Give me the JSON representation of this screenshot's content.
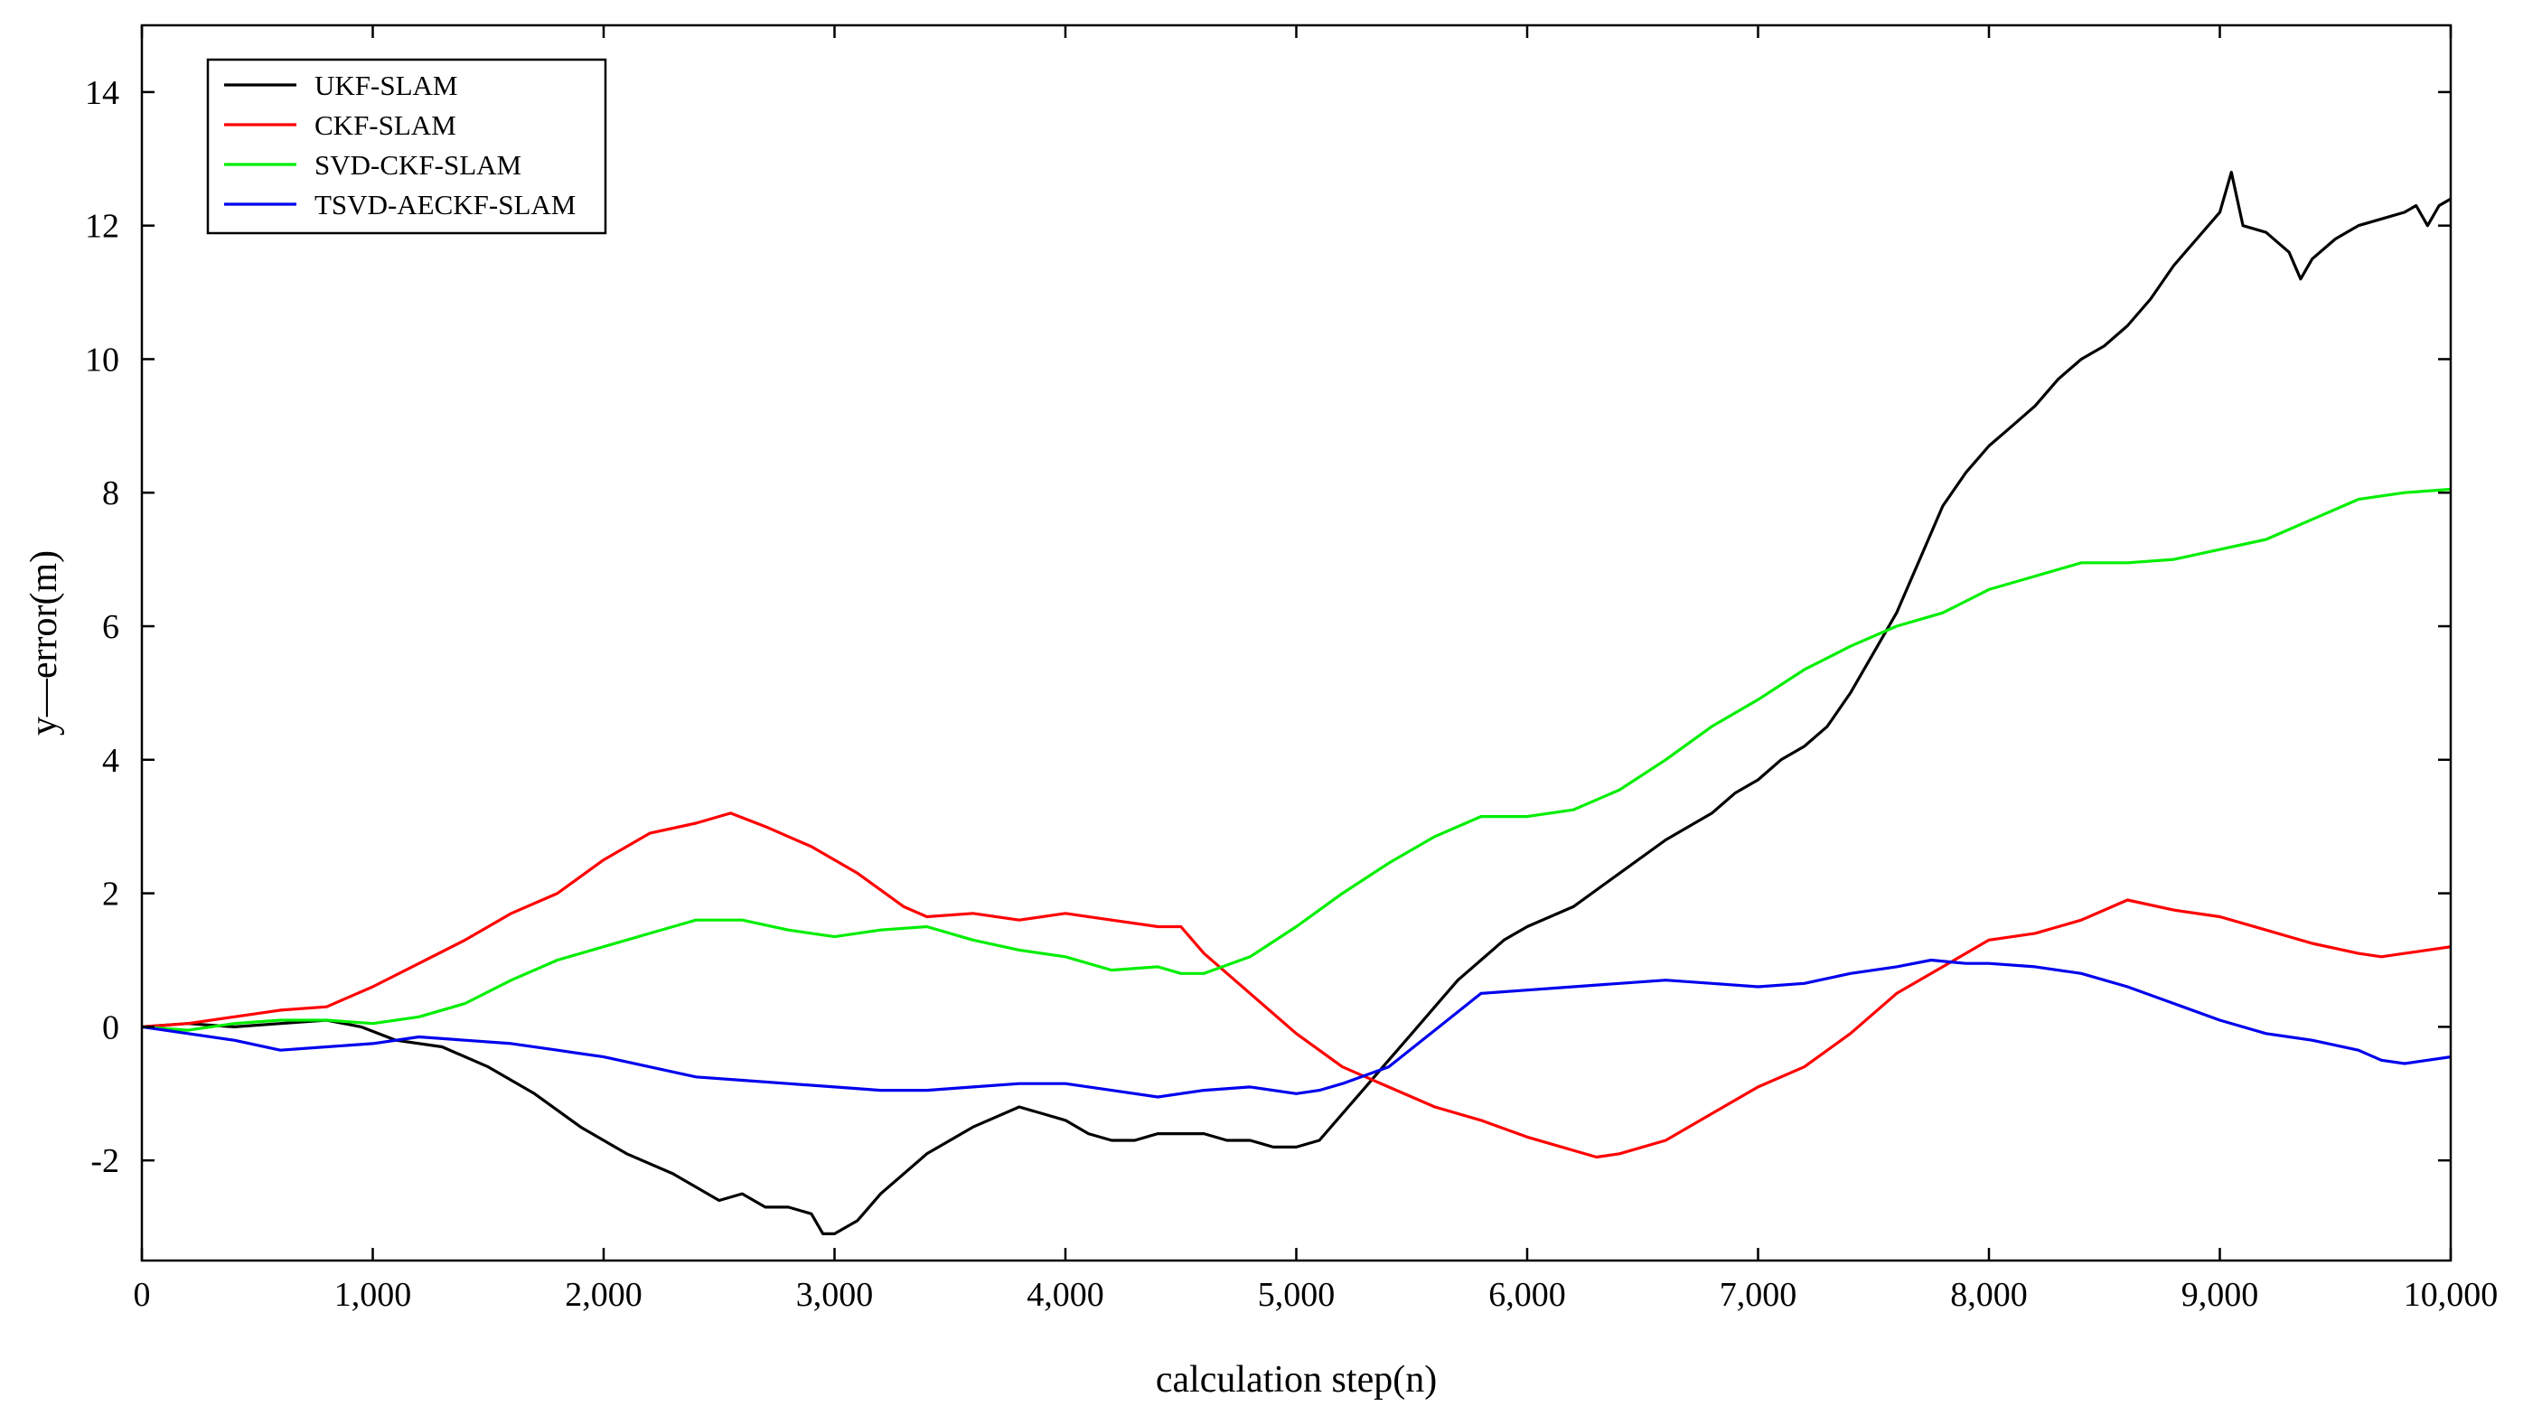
{
  "chart_data": {
    "type": "line",
    "title": "",
    "xlabel": "calculation step(n)",
    "ylabel": "y—error(m)",
    "xlim": [
      0,
      10000
    ],
    "ylim": [
      -3.5,
      15
    ],
    "xticks": [
      0,
      1000,
      2000,
      3000,
      4000,
      5000,
      6000,
      7000,
      8000,
      9000,
      10000
    ],
    "xtick_labels": [
      "0",
      "1,000",
      "2,000",
      "3,000",
      "4,000",
      "5,000",
      "6,000",
      "7,000",
      "8,000",
      "9,000",
      "10,000"
    ],
    "yticks": [
      -2,
      0,
      2,
      4,
      6,
      8,
      10,
      12,
      14
    ],
    "ytick_labels": [
      "-2",
      "0",
      "2",
      "4",
      "6",
      "8",
      "10",
      "12",
      "14"
    ],
    "grid": false,
    "legend_position": "top-left",
    "series": [
      {
        "name": "UKF-SLAM",
        "color": "#000000",
        "x": [
          0,
          200,
          400,
          600,
          800,
          950,
          1100,
          1300,
          1500,
          1700,
          1900,
          2100,
          2300,
          2500,
          2600,
          2700,
          2800,
          2900,
          2950,
          3000,
          3100,
          3200,
          3400,
          3600,
          3800,
          3900,
          4000,
          4100,
          4200,
          4300,
          4400,
          4500,
          4600,
          4700,
          4800,
          4900,
          5000,
          5100,
          5200,
          5300,
          5400,
          5500,
          5600,
          5700,
          5800,
          5900,
          6000,
          6200,
          6400,
          6600,
          6800,
          6900,
          7000,
          7100,
          7200,
          7300,
          7400,
          7500,
          7600,
          7700,
          7800,
          7900,
          8000,
          8100,
          8200,
          8300,
          8400,
          8500,
          8600,
          8700,
          8800,
          8900,
          9000,
          9050,
          9100,
          9200,
          9300,
          9350,
          9400,
          9500,
          9600,
          9700,
          9800,
          9850,
          9900,
          9950,
          10000
        ],
        "y": [
          0,
          0.05,
          0.0,
          0.05,
          0.1,
          0.0,
          -0.2,
          -0.3,
          -0.6,
          -1.0,
          -1.5,
          -1.9,
          -2.2,
          -2.6,
          -2.5,
          -2.7,
          -2.7,
          -2.8,
          -3.1,
          -3.1,
          -2.9,
          -2.5,
          -1.9,
          -1.5,
          -1.2,
          -1.3,
          -1.4,
          -1.6,
          -1.7,
          -1.7,
          -1.6,
          -1.6,
          -1.6,
          -1.7,
          -1.7,
          -1.8,
          -1.8,
          -1.7,
          -1.3,
          -0.9,
          -0.5,
          -0.1,
          0.3,
          0.7,
          1.0,
          1.3,
          1.5,
          1.8,
          2.3,
          2.8,
          3.2,
          3.5,
          3.7,
          4.0,
          4.2,
          4.5,
          5.0,
          5.6,
          6.2,
          7.0,
          7.8,
          8.3,
          8.7,
          9.0,
          9.3,
          9.7,
          10.0,
          10.2,
          10.5,
          10.9,
          11.4,
          11.8,
          12.2,
          12.8,
          12.0,
          11.9,
          11.6,
          11.2,
          11.5,
          11.8,
          12.0,
          12.1,
          12.2,
          12.3,
          12.0,
          12.3,
          12.4
        ]
      },
      {
        "name": "CKF-SLAM",
        "color": "#ff0000",
        "x": [
          0,
          200,
          400,
          600,
          800,
          1000,
          1200,
          1400,
          1600,
          1800,
          2000,
          2200,
          2400,
          2550,
          2700,
          2900,
          3100,
          3300,
          3400,
          3600,
          3800,
          4000,
          4200,
          4400,
          4500,
          4600,
          4800,
          5000,
          5200,
          5400,
          5600,
          5800,
          6000,
          6200,
          6300,
          6400,
          6600,
          6800,
          7000,
          7200,
          7400,
          7600,
          7800,
          8000,
          8200,
          8400,
          8600,
          8800,
          9000,
          9200,
          9400,
          9600,
          9700,
          9800,
          9900,
          10000
        ],
        "y": [
          0,
          0.05,
          0.15,
          0.25,
          0.3,
          0.6,
          0.95,
          1.3,
          1.7,
          2.0,
          2.5,
          2.9,
          3.05,
          3.2,
          3.0,
          2.7,
          2.3,
          1.8,
          1.65,
          1.7,
          1.6,
          1.7,
          1.6,
          1.5,
          1.5,
          1.1,
          0.5,
          -0.1,
          -0.6,
          -0.9,
          -1.2,
          -1.4,
          -1.65,
          -1.85,
          -1.95,
          -1.9,
          -1.7,
          -1.3,
          -0.9,
          -0.6,
          -0.1,
          0.5,
          0.9,
          1.3,
          1.4,
          1.6,
          1.9,
          1.75,
          1.65,
          1.45,
          1.25,
          1.1,
          1.05,
          1.1,
          1.15,
          1.2
        ]
      },
      {
        "name": "SVD-CKF-SLAM",
        "color": "#00ee00",
        "x": [
          0,
          200,
          400,
          600,
          800,
          1000,
          1200,
          1400,
          1600,
          1800,
          2000,
          2200,
          2400,
          2600,
          2800,
          3000,
          3200,
          3400,
          3600,
          3800,
          4000,
          4200,
          4400,
          4500,
          4600,
          4800,
          5000,
          5200,
          5400,
          5600,
          5800,
          6000,
          6200,
          6400,
          6600,
          6800,
          7000,
          7200,
          7400,
          7600,
          7800,
          8000,
          8200,
          8400,
          8600,
          8800,
          9000,
          9200,
          9400,
          9600,
          9800,
          10000
        ],
        "y": [
          0,
          -0.05,
          0.05,
          0.1,
          0.1,
          0.05,
          0.15,
          0.35,
          0.7,
          1.0,
          1.2,
          1.4,
          1.6,
          1.6,
          1.45,
          1.35,
          1.45,
          1.5,
          1.3,
          1.15,
          1.05,
          0.85,
          0.9,
          0.8,
          0.8,
          1.05,
          1.5,
          2.0,
          2.45,
          2.85,
          3.15,
          3.15,
          3.25,
          3.55,
          4.0,
          4.5,
          4.9,
          5.35,
          5.7,
          6.0,
          6.2,
          6.55,
          6.75,
          6.95,
          6.95,
          7.0,
          7.15,
          7.3,
          7.6,
          7.9,
          8.0,
          8.05
        ]
      },
      {
        "name": "TSVD-AECKF-SLAM",
        "color": "#0000ee",
        "x": [
          0,
          200,
          400,
          600,
          800,
          1000,
          1200,
          1400,
          1600,
          1800,
          2000,
          2200,
          2400,
          2600,
          2800,
          3000,
          3200,
          3400,
          3600,
          3800,
          4000,
          4200,
          4400,
          4600,
          4800,
          5000,
          5100,
          5200,
          5400,
          5600,
          5800,
          6000,
          6200,
          6400,
          6600,
          6800,
          7000,
          7200,
          7400,
          7600,
          7750,
          7900,
          8000,
          8200,
          8400,
          8600,
          8800,
          9000,
          9200,
          9400,
          9600,
          9700,
          9800,
          9900,
          10000
        ],
        "y": [
          0,
          -0.1,
          -0.2,
          -0.35,
          -0.3,
          -0.25,
          -0.15,
          -0.2,
          -0.25,
          -0.35,
          -0.45,
          -0.6,
          -0.75,
          -0.8,
          -0.85,
          -0.9,
          -0.95,
          -0.95,
          -0.9,
          -0.85,
          -0.85,
          -0.95,
          -1.05,
          -0.95,
          -0.9,
          -1.0,
          -0.95,
          -0.85,
          -0.6,
          -0.05,
          0.5,
          0.55,
          0.6,
          0.65,
          0.7,
          0.65,
          0.6,
          0.65,
          0.8,
          0.9,
          1.0,
          0.95,
          0.95,
          0.9,
          0.8,
          0.6,
          0.35,
          0.1,
          -0.1,
          -0.2,
          -0.35,
          -0.5,
          -0.55,
          -0.5,
          -0.45
        ]
      }
    ]
  }
}
